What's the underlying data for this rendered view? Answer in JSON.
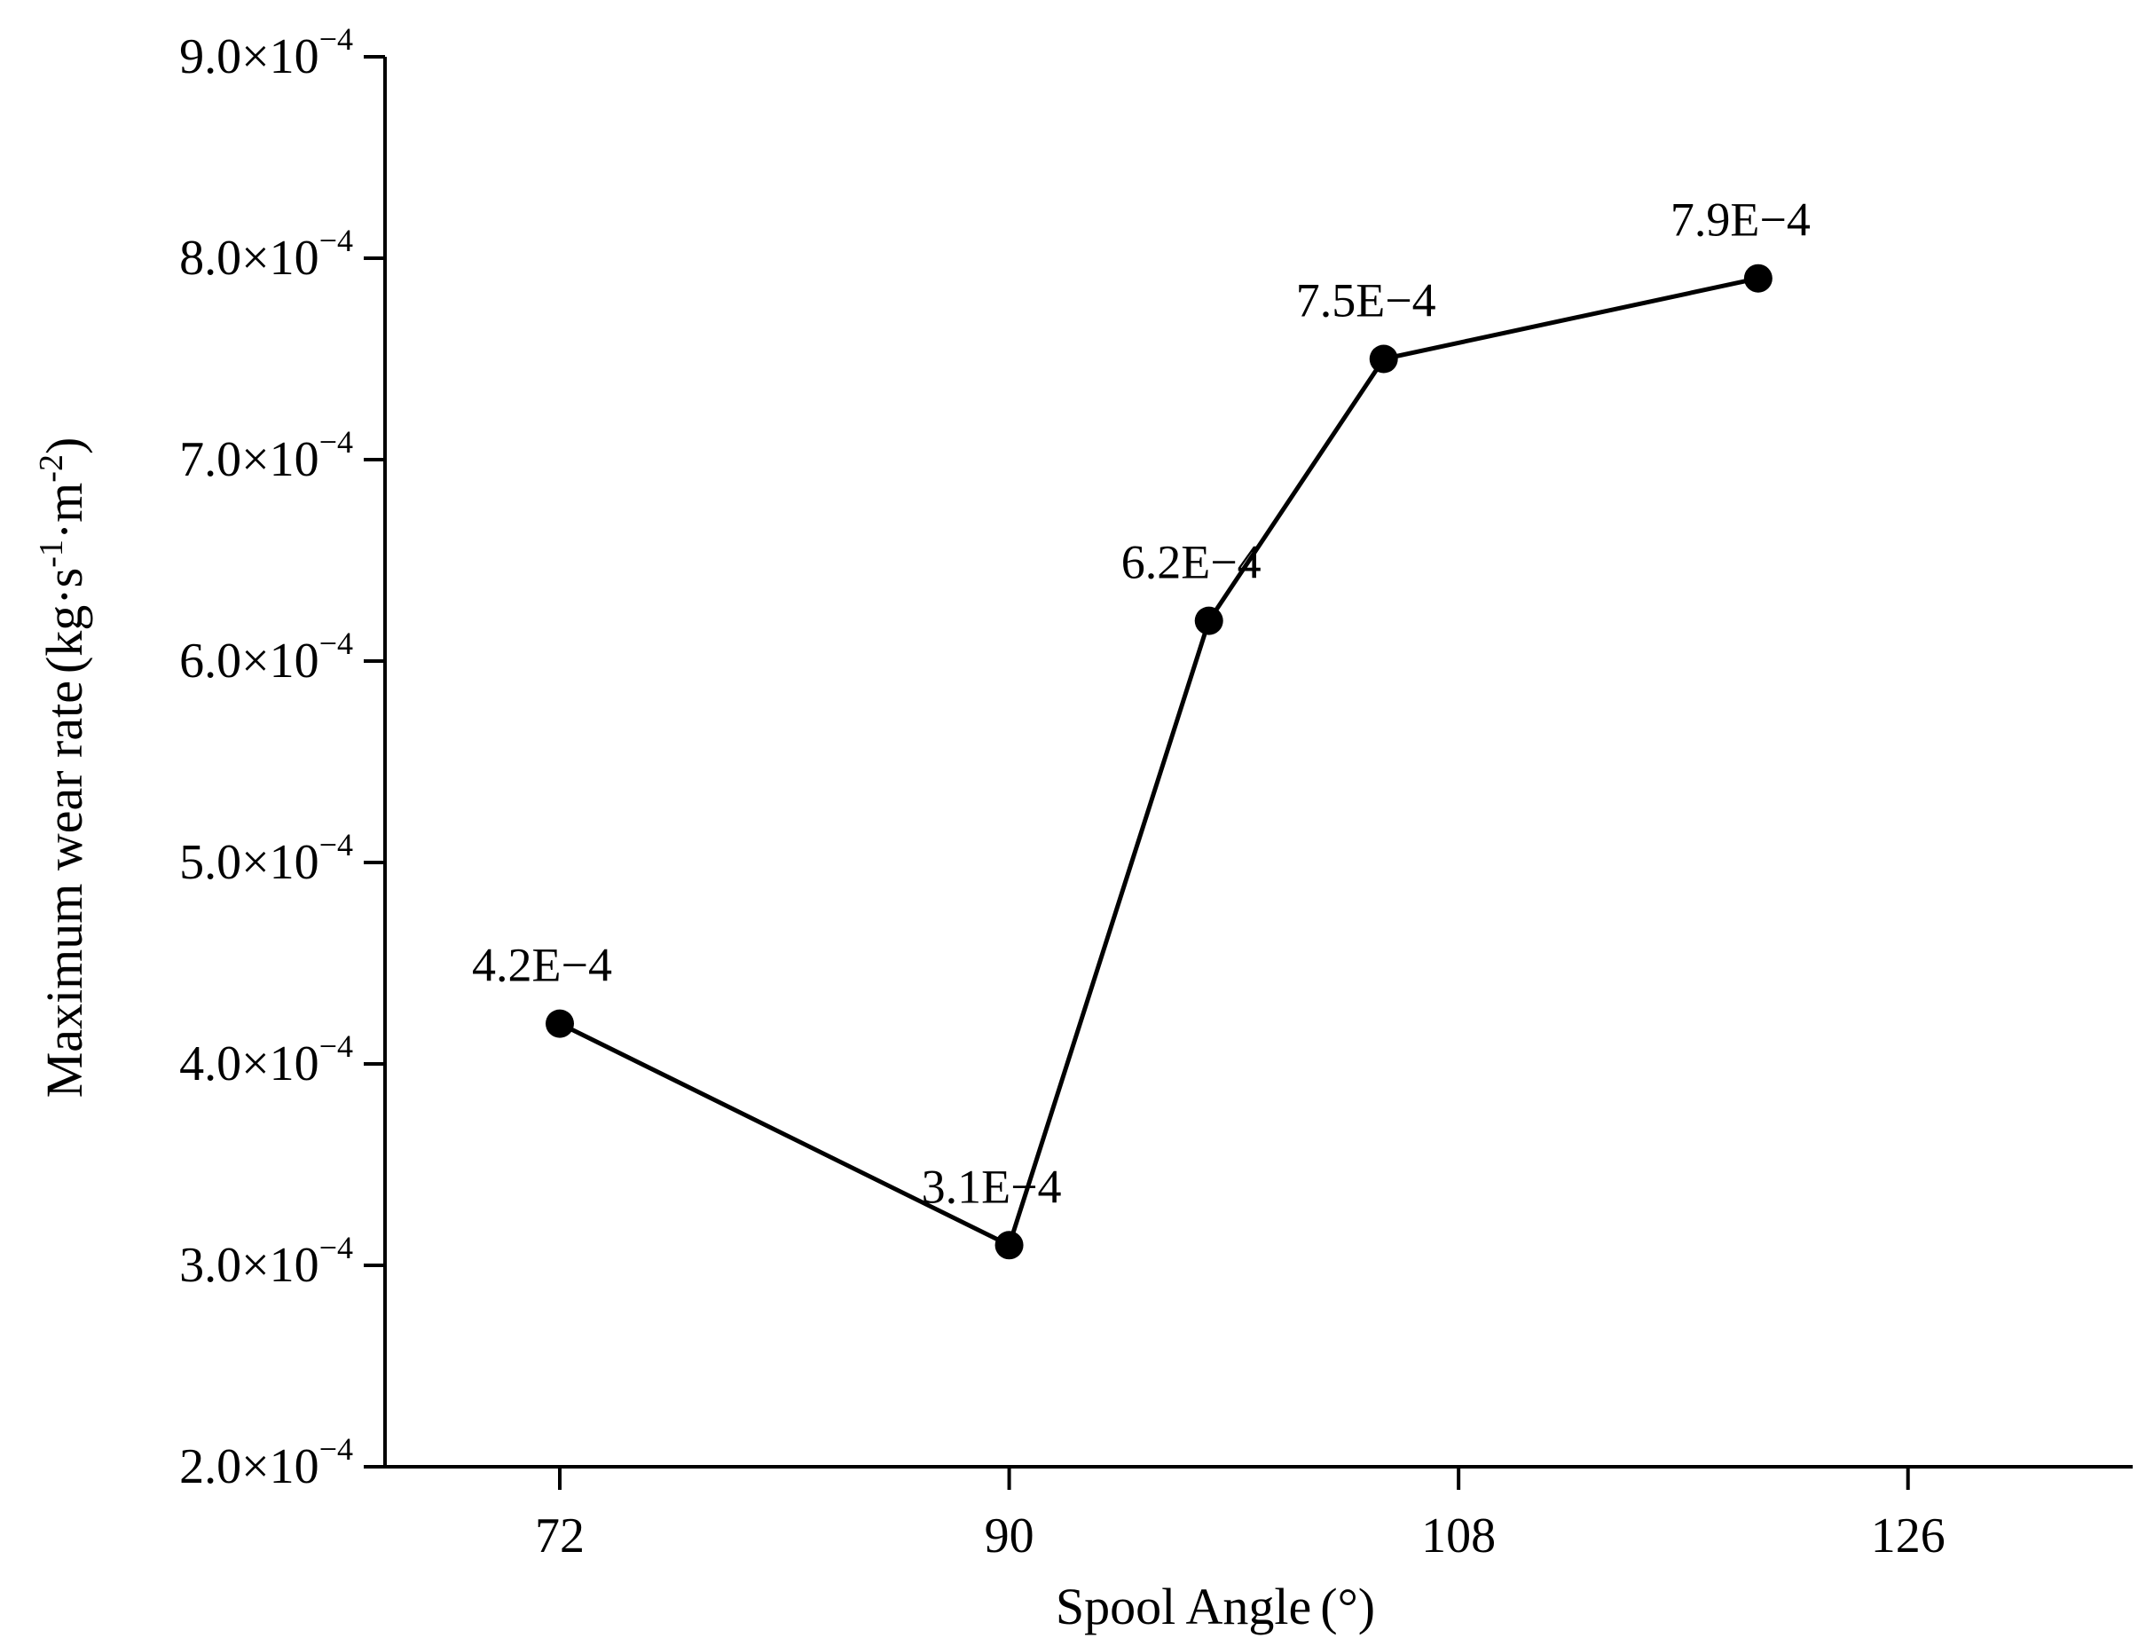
{
  "chart_data": {
    "type": "line",
    "title": "",
    "xlabel": "Spool Angle",
    "xlabel_unit": "(°)",
    "ylabel": "Maximum wear rate",
    "ylabel_unit": {
      "open": "(",
      "base1": "kg·s",
      "exp1": "-1",
      "base2": "·m",
      "exp2": "-2",
      "close": ")"
    },
    "xlim": [
      65,
      135
    ],
    "ylim": [
      0.0002,
      0.0009
    ],
    "x_ticks": [
      72,
      90,
      108,
      126
    ],
    "x_tick_labels": [
      "72",
      "90",
      "108",
      "126"
    ],
    "y_ticks": [
      0.0002,
      0.0003,
      0.0004,
      0.0005,
      0.0006,
      0.0007,
      0.0008,
      0.0009
    ],
    "y_tick_labels": [
      {
        "mantissa": "2.0×10",
        "exponent": "−4"
      },
      {
        "mantissa": "3.0×10",
        "exponent": "−4"
      },
      {
        "mantissa": "4.0×10",
        "exponent": "−4"
      },
      {
        "mantissa": "5.0×10",
        "exponent": "−4"
      },
      {
        "mantissa": "6.0×10",
        "exponent": "−4"
      },
      {
        "mantissa": "7.0×10",
        "exponent": "−4"
      },
      {
        "mantissa": "8.0×10",
        "exponent": "−4"
      },
      {
        "mantissa": "9.0×10",
        "exponent": "−4"
      }
    ],
    "grid": false,
    "legend": "none",
    "line_color": "#000000",
    "marker_color": "#000000",
    "series": [
      {
        "x": [
          72,
          90,
          98,
          105,
          120
        ],
        "values": [
          0.00042,
          0.00031,
          0.00062,
          0.00075,
          0.00079
        ],
        "labels": [
          "4.2E−4",
          "3.1E−4",
          "6.2E−4",
          "7.5E−4",
          "7.9E−4"
        ]
      }
    ]
  }
}
